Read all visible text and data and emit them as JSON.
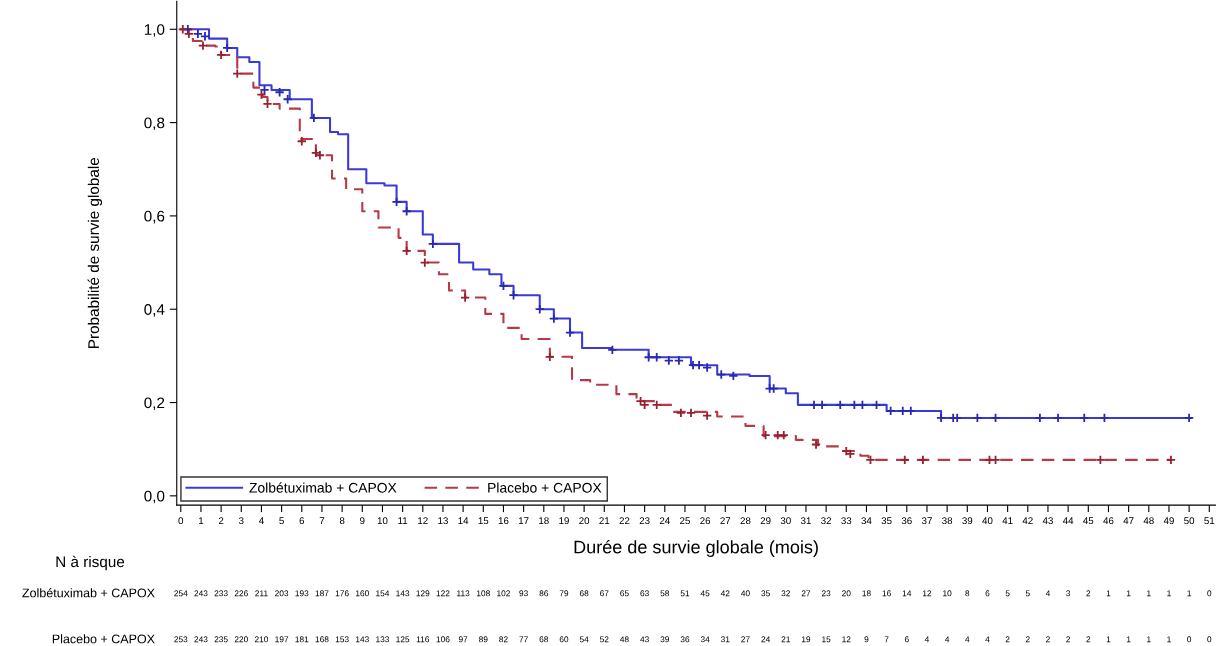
{
  "chart_data": {
    "type": "step",
    "xlabel": "Durée de survie globale (mois)",
    "ylabel": "Probabilité de survie globale",
    "xlim": [
      -0.2,
      51.3
    ],
    "ylim": [
      -0.02,
      1.06
    ],
    "xticks": [
      0,
      1,
      2,
      3,
      4,
      5,
      6,
      7,
      8,
      9,
      10,
      11,
      12,
      13,
      14,
      15,
      16,
      17,
      18,
      19,
      20,
      21,
      22,
      23,
      24,
      25,
      26,
      27,
      28,
      29,
      30,
      31,
      32,
      33,
      34,
      35,
      36,
      37,
      38,
      39,
      40,
      41,
      42,
      43,
      44,
      45,
      46,
      47,
      48,
      49,
      50,
      51
    ],
    "yticks": [
      {
        "value": 0,
        "label": "0,0"
      },
      {
        "value": 0.2,
        "label": "0,2"
      },
      {
        "value": 0.4,
        "label": "0,4"
      },
      {
        "value": 0.6,
        "label": "0,6"
      },
      {
        "value": 0.8,
        "label": "0,8"
      },
      {
        "value": 1.0,
        "label": "1,0"
      }
    ],
    "grid": false,
    "legend": "bottom left",
    "marker": "none",
    "series": [
      {
        "name": "Zolbétuximab + CAPOX",
        "type": "step",
        "color": "#3a3ad8",
        "line_style": "solid",
        "x": [
          0,
          1.4,
          2.3,
          2.8,
          3.4,
          3.9,
          4.5,
          5.4,
          6.5,
          7.4,
          7.8,
          8.3,
          9.2,
          10.1,
          10.7,
          11.2,
          12.0,
          12.5,
          13.8,
          14.5,
          15.3,
          15.9,
          16.5,
          17.8,
          18.5,
          19.3,
          19.9,
          21.4,
          23.2,
          25.3,
          26.6,
          28.2,
          29.2,
          30.0,
          30.6,
          35.0,
          37.7,
          50.1
        ],
        "values": [
          1.0,
          0.98,
          0.96,
          0.94,
          0.93,
          0.88,
          0.87,
          0.85,
          0.81,
          0.78,
          0.775,
          0.7,
          0.67,
          0.665,
          0.63,
          0.61,
          0.56,
          0.54,
          0.5,
          0.485,
          0.475,
          0.45,
          0.43,
          0.4,
          0.38,
          0.35,
          0.317,
          0.313,
          0.297,
          0.28,
          0.26,
          0.257,
          0.23,
          0.22,
          0.195,
          0.182,
          0.167,
          0.167
        ]
      },
      {
        "name": "Placebo + CAPOX",
        "type": "step",
        "color": "#b83848",
        "line_style": "dashed",
        "x": [
          0,
          0.6,
          1.1,
          1.7,
          2.0,
          2.8,
          3.6,
          4.05,
          4.3,
          4.9,
          5.9,
          6.7,
          7.5,
          8.2,
          9.0,
          9.8,
          10.8,
          11.2,
          12.1,
          12.8,
          13.3,
          14.1,
          15.1,
          16.0,
          16.9,
          18.3,
          19.4,
          20.3,
          21.6,
          22.6,
          23.7,
          24.4,
          26.6,
          28.0,
          28.9,
          30.5,
          31.6,
          32.8,
          33.7,
          34.1,
          49.1
        ],
        "values": [
          1.0,
          0.975,
          0.965,
          0.963,
          0.945,
          0.905,
          0.875,
          0.855,
          0.84,
          0.83,
          0.765,
          0.73,
          0.68,
          0.657,
          0.61,
          0.575,
          0.553,
          0.525,
          0.5,
          0.475,
          0.44,
          0.425,
          0.39,
          0.36,
          0.336,
          0.298,
          0.248,
          0.238,
          0.218,
          0.203,
          0.195,
          0.18,
          0.17,
          0.15,
          0.128,
          0.12,
          0.106,
          0.096,
          0.086,
          0.077,
          0.077
        ]
      },
      {
        "type": "scatter",
        "marker": "cross",
        "color": "#2828b0",
        "x": [
          0.35,
          0.85,
          1.2,
          2.3,
          4.15,
          4.9,
          5.3,
          6.6,
          10.7,
          11.2,
          12.5,
          16.0,
          16.5,
          17.8,
          18.5,
          19.3,
          21.4,
          23.2,
          23.6,
          24.2,
          24.7,
          25.4,
          25.7,
          26.1,
          26.8,
          27.4,
          29.2,
          29.4,
          31.4,
          31.8,
          32.7,
          33.4,
          33.8,
          34.5,
          35.2,
          35.8,
          36.2,
          37.7,
          38.3,
          38.5,
          39.5,
          40.4,
          42.6,
          43.5,
          44.8,
          45.8,
          50.0
        ],
        "values": [
          1.0,
          0.99,
          0.985,
          0.96,
          0.87,
          0.865,
          0.85,
          0.81,
          0.63,
          0.61,
          0.54,
          0.45,
          0.43,
          0.4,
          0.38,
          0.35,
          0.313,
          0.297,
          0.297,
          0.29,
          0.29,
          0.28,
          0.28,
          0.275,
          0.26,
          0.257,
          0.23,
          0.23,
          0.195,
          0.195,
          0.195,
          0.195,
          0.195,
          0.195,
          0.182,
          0.182,
          0.182,
          0.167,
          0.167,
          0.167,
          0.167,
          0.167,
          0.167,
          0.167,
          0.167,
          0.167,
          0.167
        ]
      },
      {
        "type": "scatter",
        "marker": "cross",
        "color": "#98202e",
        "x": [
          0.1,
          0.4,
          1.1,
          2.0,
          2.8,
          4.0,
          4.3,
          6.0,
          6.7,
          6.9,
          11.2,
          12.1,
          14.1,
          18.3,
          22.8,
          23.0,
          23.6,
          24.8,
          25.3,
          26.1,
          29.0,
          29.6,
          29.9,
          31.5,
          33.0,
          33.2,
          34.2,
          35.9,
          36.8,
          40.1,
          40.4,
          45.6,
          49.1
        ],
        "values": [
          1.0,
          0.99,
          0.965,
          0.945,
          0.905,
          0.86,
          0.84,
          0.76,
          0.735,
          0.73,
          0.525,
          0.5,
          0.425,
          0.298,
          0.203,
          0.195,
          0.195,
          0.178,
          0.178,
          0.172,
          0.13,
          0.13,
          0.13,
          0.11,
          0.096,
          0.09,
          0.077,
          0.077,
          0.077,
          0.077,
          0.077,
          0.077,
          0.077
        ]
      }
    ],
    "annotations": [
      "N à risque",
      "Zolbétuximab + CAPOX",
      "254 243 233 226 211 203 193 187 176 160 154 143 129 122 113 108 102 93 86 79 68 67 65 63 58 51 45 42 40 35 32 27 23 20 18 16 14 12 10 8 6 5 5 4 3 2 1 1 1 1 1 0",
      "Placebo + CAPOX",
      "253 243 235 220 210 197 181 168 153 143 133 125 116 106 97 89 82 77 68 60 54 52 48 43 39 36 34 31 27 24 21 19 15 12 9 7 6 4 4 4 4 2 2 2 2 2 1 1 1 1 0 0"
    ]
  }
}
